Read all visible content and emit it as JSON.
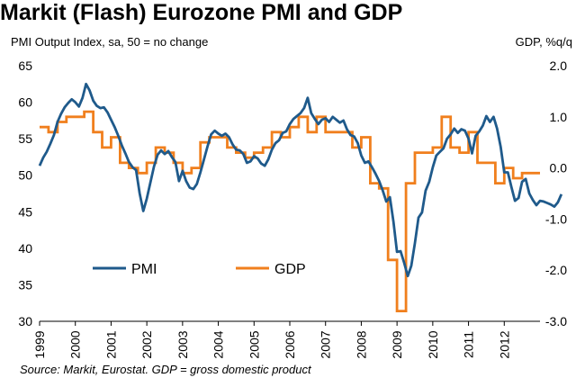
{
  "colors": {
    "pmi": "#1f5a8b",
    "gdp": "#f07f1d"
  },
  "chart_data": {
    "type": "line",
    "title": "Markit (Flash) Eurozone PMI and GDP",
    "left_axis_label": "PMI Output Index, sa, 50 = no change",
    "right_axis_label": "GDP, %q/q",
    "source": "Source: Markit, Eurostat. GDP = gross domestic product",
    "ylim_left": [
      30,
      65
    ],
    "ylim_right": [
      -3.0,
      2.0
    ],
    "xlim": [
      1999,
      2013
    ],
    "x_ticks": [
      "1999",
      "2000",
      "2001",
      "2002",
      "2003",
      "2004",
      "2005",
      "2006",
      "2007",
      "2008",
      "2009",
      "2010",
      "2011",
      "2012"
    ],
    "y_ticks_left": [
      "30",
      "35",
      "40",
      "45",
      "50",
      "55",
      "60",
      "65"
    ],
    "y_ticks_right": [
      "-3.0",
      "-2.0",
      "-1.0",
      "0.0",
      "1.0",
      "2.0"
    ],
    "grid": false,
    "legend": {
      "placement": "lower-left",
      "items": [
        "PMI",
        "GDP"
      ]
    },
    "series": [
      {
        "name": "PMI",
        "axis": "left",
        "points": [
          [
            1999.0,
            51.3
          ],
          [
            1999.1,
            52.4
          ],
          [
            1999.2,
            53.2
          ],
          [
            1999.3,
            54.3
          ],
          [
            1999.4,
            55.5
          ],
          [
            1999.5,
            57.3
          ],
          [
            1999.6,
            58.4
          ],
          [
            1999.7,
            59.3
          ],
          [
            1999.8,
            59.9
          ],
          [
            1999.9,
            60.4
          ],
          [
            2000.0,
            60.0
          ],
          [
            2000.1,
            59.4
          ],
          [
            2000.2,
            60.6
          ],
          [
            2000.3,
            62.5
          ],
          [
            2000.4,
            61.6
          ],
          [
            2000.5,
            60.2
          ],
          [
            2000.6,
            59.5
          ],
          [
            2000.7,
            59.2
          ],
          [
            2000.8,
            59.3
          ],
          [
            2000.9,
            58.6
          ],
          [
            2001.0,
            57.6
          ],
          [
            2001.1,
            56.6
          ],
          [
            2001.2,
            55.4
          ],
          [
            2001.3,
            54.1
          ],
          [
            2001.4,
            53.0
          ],
          [
            2001.5,
            51.8
          ],
          [
            2001.6,
            51.1
          ],
          [
            2001.7,
            50.7
          ],
          [
            2001.8,
            47.5
          ],
          [
            2001.9,
            45.1
          ],
          [
            2002.0,
            46.8
          ],
          [
            2002.1,
            49.0
          ],
          [
            2002.2,
            51.2
          ],
          [
            2002.3,
            52.8
          ],
          [
            2002.4,
            53.4
          ],
          [
            2002.5,
            52.9
          ],
          [
            2002.6,
            53.3
          ],
          [
            2002.7,
            52.5
          ],
          [
            2002.8,
            51.8
          ],
          [
            2002.9,
            49.2
          ],
          [
            2003.0,
            50.6
          ],
          [
            2003.1,
            49.2
          ],
          [
            2003.2,
            48.3
          ],
          [
            2003.3,
            48.1
          ],
          [
            2003.4,
            48.8
          ],
          [
            2003.5,
            50.4
          ],
          [
            2003.6,
            52.2
          ],
          [
            2003.7,
            54.0
          ],
          [
            2003.8,
            55.6
          ],
          [
            2003.9,
            56.1
          ],
          [
            2004.0,
            55.7
          ],
          [
            2004.1,
            55.4
          ],
          [
            2004.2,
            55.7
          ],
          [
            2004.3,
            55.2
          ],
          [
            2004.4,
            54.2
          ],
          [
            2004.5,
            53.5
          ],
          [
            2004.6,
            53.4
          ],
          [
            2004.7,
            52.9
          ],
          [
            2004.8,
            51.7
          ],
          [
            2004.9,
            51.9
          ],
          [
            2005.0,
            52.6
          ],
          [
            2005.1,
            52.3
          ],
          [
            2005.2,
            51.6
          ],
          [
            2005.3,
            51.3
          ],
          [
            2005.4,
            52.2
          ],
          [
            2005.5,
            53.5
          ],
          [
            2005.6,
            54.4
          ],
          [
            2005.7,
            54.8
          ],
          [
            2005.8,
            55.8
          ],
          [
            2005.9,
            56.0
          ],
          [
            2006.0,
            57.0
          ],
          [
            2006.1,
            57.7
          ],
          [
            2006.2,
            58.1
          ],
          [
            2006.3,
            58.5
          ],
          [
            2006.4,
            59.2
          ],
          [
            2006.5,
            60.6
          ],
          [
            2006.6,
            58.5
          ],
          [
            2006.7,
            57.7
          ],
          [
            2006.8,
            57.0
          ],
          [
            2006.9,
            57.6
          ],
          [
            2007.0,
            57.8
          ],
          [
            2007.1,
            57.3
          ],
          [
            2007.2,
            58.0
          ],
          [
            2007.3,
            57.6
          ],
          [
            2007.4,
            57.2
          ],
          [
            2007.5,
            57.5
          ],
          [
            2007.6,
            56.3
          ],
          [
            2007.7,
            55.5
          ],
          [
            2007.8,
            55.3
          ],
          [
            2007.9,
            54.4
          ],
          [
            2008.0,
            52.7
          ],
          [
            2008.1,
            51.7
          ],
          [
            2008.2,
            51.9
          ],
          [
            2008.3,
            51.1
          ],
          [
            2008.4,
            50.2
          ],
          [
            2008.5,
            49.2
          ],
          [
            2008.6,
            47.9
          ],
          [
            2008.7,
            46.4
          ],
          [
            2008.8,
            47.0
          ],
          [
            2008.9,
            43.6
          ],
          [
            2009.0,
            39.5
          ],
          [
            2009.1,
            39.6
          ],
          [
            2009.2,
            38.0
          ],
          [
            2009.3,
            36.2
          ],
          [
            2009.4,
            37.6
          ],
          [
            2009.5,
            40.7
          ],
          [
            2009.6,
            44.2
          ],
          [
            2009.7,
            44.9
          ],
          [
            2009.8,
            47.9
          ],
          [
            2009.9,
            49.1
          ],
          [
            2010.0,
            51.1
          ],
          [
            2010.1,
            52.7
          ],
          [
            2010.2,
            53.2
          ],
          [
            2010.3,
            53.7
          ],
          [
            2010.4,
            55.0
          ],
          [
            2010.5,
            55.6
          ],
          [
            2010.6,
            56.4
          ],
          [
            2010.7,
            55.8
          ],
          [
            2010.8,
            56.3
          ],
          [
            2010.9,
            56.1
          ],
          [
            2011.0,
            55.0
          ],
          [
            2011.1,
            53.0
          ],
          [
            2011.2,
            55.4
          ],
          [
            2011.3,
            56.0
          ],
          [
            2011.4,
            56.8
          ],
          [
            2011.5,
            58.1
          ],
          [
            2011.6,
            57.3
          ],
          [
            2011.7,
            58.0
          ],
          [
            2011.8,
            56.4
          ],
          [
            2011.9,
            53.9
          ],
          [
            2012.0,
            50.4
          ],
          [
            2012.1,
            50.4
          ],
          [
            2012.2,
            48.4
          ],
          [
            2012.3,
            46.5
          ],
          [
            2012.4,
            46.9
          ],
          [
            2012.5,
            49.1
          ],
          [
            2012.6,
            49.5
          ],
          [
            2012.7,
            47.5
          ],
          [
            2012.8,
            46.6
          ],
          [
            2012.9,
            45.9
          ],
          [
            2013.0,
            46.5
          ],
          [
            2013.1,
            46.4
          ],
          [
            2013.2,
            46.2
          ],
          [
            2013.3,
            46.0
          ],
          [
            2013.4,
            45.7
          ],
          [
            2013.5,
            46.3
          ],
          [
            2013.6,
            47.4
          ]
        ]
      },
      {
        "name": "GDP",
        "axis": "right",
        "step": true,
        "points": [
          [
            1999.0,
            0.8
          ],
          [
            1999.25,
            0.7
          ],
          [
            1999.5,
            0.9
          ],
          [
            1999.75,
            1.0
          ],
          [
            2000.0,
            1.0
          ],
          [
            2000.25,
            1.1
          ],
          [
            2000.5,
            0.7
          ],
          [
            2000.75,
            0.4
          ],
          [
            2001.0,
            0.6
          ],
          [
            2001.25,
            0.1
          ],
          [
            2001.5,
            0.0
          ],
          [
            2001.75,
            -0.1
          ],
          [
            2002.0,
            0.1
          ],
          [
            2002.25,
            0.4
          ],
          [
            2002.5,
            0.3
          ],
          [
            2002.75,
            0.1
          ],
          [
            2003.0,
            -0.1
          ],
          [
            2003.25,
            0.0
          ],
          [
            2003.5,
            0.5
          ],
          [
            2003.75,
            0.6
          ],
          [
            2004.0,
            0.6
          ],
          [
            2004.25,
            0.4
          ],
          [
            2004.5,
            0.3
          ],
          [
            2004.75,
            0.2
          ],
          [
            2005.0,
            0.3
          ],
          [
            2005.25,
            0.4
          ],
          [
            2005.5,
            0.7
          ],
          [
            2005.75,
            0.6
          ],
          [
            2006.0,
            0.8
          ],
          [
            2006.25,
            1.0
          ],
          [
            2006.5,
            0.7
          ],
          [
            2006.75,
            1.0
          ],
          [
            2007.0,
            0.7
          ],
          [
            2007.25,
            0.7
          ],
          [
            2007.5,
            0.7
          ],
          [
            2007.75,
            0.4
          ],
          [
            2008.0,
            0.6
          ],
          [
            2008.25,
            -0.3
          ],
          [
            2008.5,
            -0.4
          ],
          [
            2008.75,
            -1.8
          ],
          [
            2009.0,
            -2.8
          ],
          [
            2009.25,
            -0.3
          ],
          [
            2009.5,
            0.3
          ],
          [
            2009.75,
            0.3
          ],
          [
            2010.0,
            0.4
          ],
          [
            2010.25,
            1.0
          ],
          [
            2010.5,
            0.4
          ],
          [
            2010.75,
            0.3
          ],
          [
            2011.0,
            0.7
          ],
          [
            2011.25,
            0.1
          ],
          [
            2011.5,
            0.1
          ],
          [
            2011.75,
            -0.3
          ],
          [
            2012.0,
            0.0
          ],
          [
            2012.25,
            -0.2
          ],
          [
            2012.5,
            -0.1
          ],
          [
            2012.75,
            -0.1
          ],
          [
            2013.0,
            -0.1
          ]
        ]
      }
    ]
  }
}
